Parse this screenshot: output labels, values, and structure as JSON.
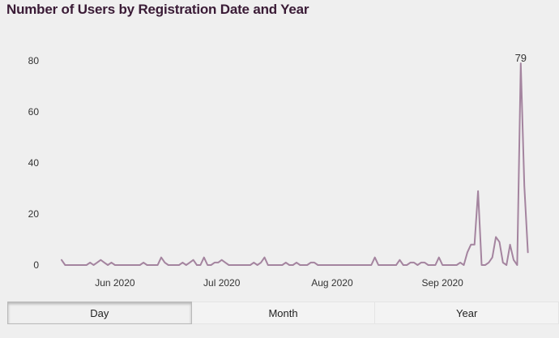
{
  "page": {
    "title": "Number of Users by Registration Date and Year"
  },
  "tabs": [
    {
      "label": "Day",
      "active": true
    },
    {
      "label": "Month",
      "active": false
    },
    {
      "label": "Year",
      "active": false
    }
  ],
  "chart_data": {
    "type": "line",
    "title": "Number of Users by Registration Date and Year",
    "xlabel": "",
    "ylabel": "",
    "ylim": [
      0,
      80
    ],
    "y_ticks": [
      0,
      20,
      40,
      60,
      80
    ],
    "x_ticks": [
      {
        "date": "2020-06-01",
        "label": "Jun 2020"
      },
      {
        "date": "2020-07-01",
        "label": "Jul 2020"
      },
      {
        "date": "2020-08-01",
        "label": "Aug 2020"
      },
      {
        "date": "2020-09-01",
        "label": "Sep 2020"
      }
    ],
    "x_range": [
      "2020-05-17",
      "2020-09-26"
    ],
    "grid": false,
    "line_color": "#a4849f",
    "annotations": [
      {
        "date": "2020-09-23",
        "value": 79,
        "label": "79"
      }
    ],
    "series": [
      {
        "points": [
          [
            "2020-05-17",
            2
          ],
          [
            "2020-05-18",
            0
          ],
          [
            "2020-05-19",
            0
          ],
          [
            "2020-05-20",
            0
          ],
          [
            "2020-05-21",
            0
          ],
          [
            "2020-05-22",
            0
          ],
          [
            "2020-05-23",
            0
          ],
          [
            "2020-05-24",
            0
          ],
          [
            "2020-05-25",
            1
          ],
          [
            "2020-05-26",
            0
          ],
          [
            "2020-05-27",
            1
          ],
          [
            "2020-05-28",
            2
          ],
          [
            "2020-05-29",
            1
          ],
          [
            "2020-05-30",
            0
          ],
          [
            "2020-05-31",
            1
          ],
          [
            "2020-06-01",
            0
          ],
          [
            "2020-06-02",
            0
          ],
          [
            "2020-06-03",
            0
          ],
          [
            "2020-06-04",
            0
          ],
          [
            "2020-06-05",
            0
          ],
          [
            "2020-06-06",
            0
          ],
          [
            "2020-06-07",
            0
          ],
          [
            "2020-06-08",
            0
          ],
          [
            "2020-06-09",
            1
          ],
          [
            "2020-06-10",
            0
          ],
          [
            "2020-06-11",
            0
          ],
          [
            "2020-06-12",
            0
          ],
          [
            "2020-06-13",
            0
          ],
          [
            "2020-06-14",
            3
          ],
          [
            "2020-06-15",
            1
          ],
          [
            "2020-06-16",
            0
          ],
          [
            "2020-06-17",
            0
          ],
          [
            "2020-06-18",
            0
          ],
          [
            "2020-06-19",
            0
          ],
          [
            "2020-06-20",
            1
          ],
          [
            "2020-06-21",
            0
          ],
          [
            "2020-06-22",
            1
          ],
          [
            "2020-06-23",
            2
          ],
          [
            "2020-06-24",
            0
          ],
          [
            "2020-06-25",
            0
          ],
          [
            "2020-06-26",
            3
          ],
          [
            "2020-06-27",
            0
          ],
          [
            "2020-06-28",
            0
          ],
          [
            "2020-06-29",
            1
          ],
          [
            "2020-06-30",
            1
          ],
          [
            "2020-07-01",
            2
          ],
          [
            "2020-07-02",
            1
          ],
          [
            "2020-07-03",
            0
          ],
          [
            "2020-07-04",
            0
          ],
          [
            "2020-07-05",
            0
          ],
          [
            "2020-07-06",
            0
          ],
          [
            "2020-07-07",
            0
          ],
          [
            "2020-07-08",
            0
          ],
          [
            "2020-07-09",
            0
          ],
          [
            "2020-07-10",
            1
          ],
          [
            "2020-07-11",
            0
          ],
          [
            "2020-07-12",
            1
          ],
          [
            "2020-07-13",
            3
          ],
          [
            "2020-07-14",
            0
          ],
          [
            "2020-07-15",
            0
          ],
          [
            "2020-07-16",
            0
          ],
          [
            "2020-07-17",
            0
          ],
          [
            "2020-07-18",
            0
          ],
          [
            "2020-07-19",
            1
          ],
          [
            "2020-07-20",
            0
          ],
          [
            "2020-07-21",
            0
          ],
          [
            "2020-07-22",
            1
          ],
          [
            "2020-07-23",
            0
          ],
          [
            "2020-07-24",
            0
          ],
          [
            "2020-07-25",
            0
          ],
          [
            "2020-07-26",
            1
          ],
          [
            "2020-07-27",
            1
          ],
          [
            "2020-07-28",
            0
          ],
          [
            "2020-07-29",
            0
          ],
          [
            "2020-07-30",
            0
          ],
          [
            "2020-07-31",
            0
          ],
          [
            "2020-08-01",
            0
          ],
          [
            "2020-08-02",
            0
          ],
          [
            "2020-08-03",
            0
          ],
          [
            "2020-08-04",
            0
          ],
          [
            "2020-08-05",
            0
          ],
          [
            "2020-08-06",
            0
          ],
          [
            "2020-08-07",
            0
          ],
          [
            "2020-08-08",
            0
          ],
          [
            "2020-08-09",
            0
          ],
          [
            "2020-08-10",
            0
          ],
          [
            "2020-08-11",
            0
          ],
          [
            "2020-08-12",
            0
          ],
          [
            "2020-08-13",
            3
          ],
          [
            "2020-08-14",
            0
          ],
          [
            "2020-08-15",
            0
          ],
          [
            "2020-08-16",
            0
          ],
          [
            "2020-08-17",
            0
          ],
          [
            "2020-08-18",
            0
          ],
          [
            "2020-08-19",
            0
          ],
          [
            "2020-08-20",
            2
          ],
          [
            "2020-08-21",
            0
          ],
          [
            "2020-08-22",
            0
          ],
          [
            "2020-08-23",
            1
          ],
          [
            "2020-08-24",
            1
          ],
          [
            "2020-08-25",
            0
          ],
          [
            "2020-08-26",
            1
          ],
          [
            "2020-08-27",
            1
          ],
          [
            "2020-08-28",
            0
          ],
          [
            "2020-08-29",
            0
          ],
          [
            "2020-08-30",
            0
          ],
          [
            "2020-08-31",
            3
          ],
          [
            "2020-09-01",
            0
          ],
          [
            "2020-09-02",
            0
          ],
          [
            "2020-09-03",
            0
          ],
          [
            "2020-09-04",
            0
          ],
          [
            "2020-09-05",
            0
          ],
          [
            "2020-09-06",
            1
          ],
          [
            "2020-09-07",
            0
          ],
          [
            "2020-09-08",
            5
          ],
          [
            "2020-09-09",
            8
          ],
          [
            "2020-09-10",
            8
          ],
          [
            "2020-09-11",
            29
          ],
          [
            "2020-09-12",
            0
          ],
          [
            "2020-09-13",
            0
          ],
          [
            "2020-09-14",
            1
          ],
          [
            "2020-09-15",
            3
          ],
          [
            "2020-09-16",
            11
          ],
          [
            "2020-09-17",
            9
          ],
          [
            "2020-09-18",
            1
          ],
          [
            "2020-09-19",
            0
          ],
          [
            "2020-09-20",
            8
          ],
          [
            "2020-09-21",
            2
          ],
          [
            "2020-09-22",
            0
          ],
          [
            "2020-09-23",
            79
          ],
          [
            "2020-09-24",
            31
          ],
          [
            "2020-09-25",
            5
          ]
        ]
      }
    ]
  }
}
